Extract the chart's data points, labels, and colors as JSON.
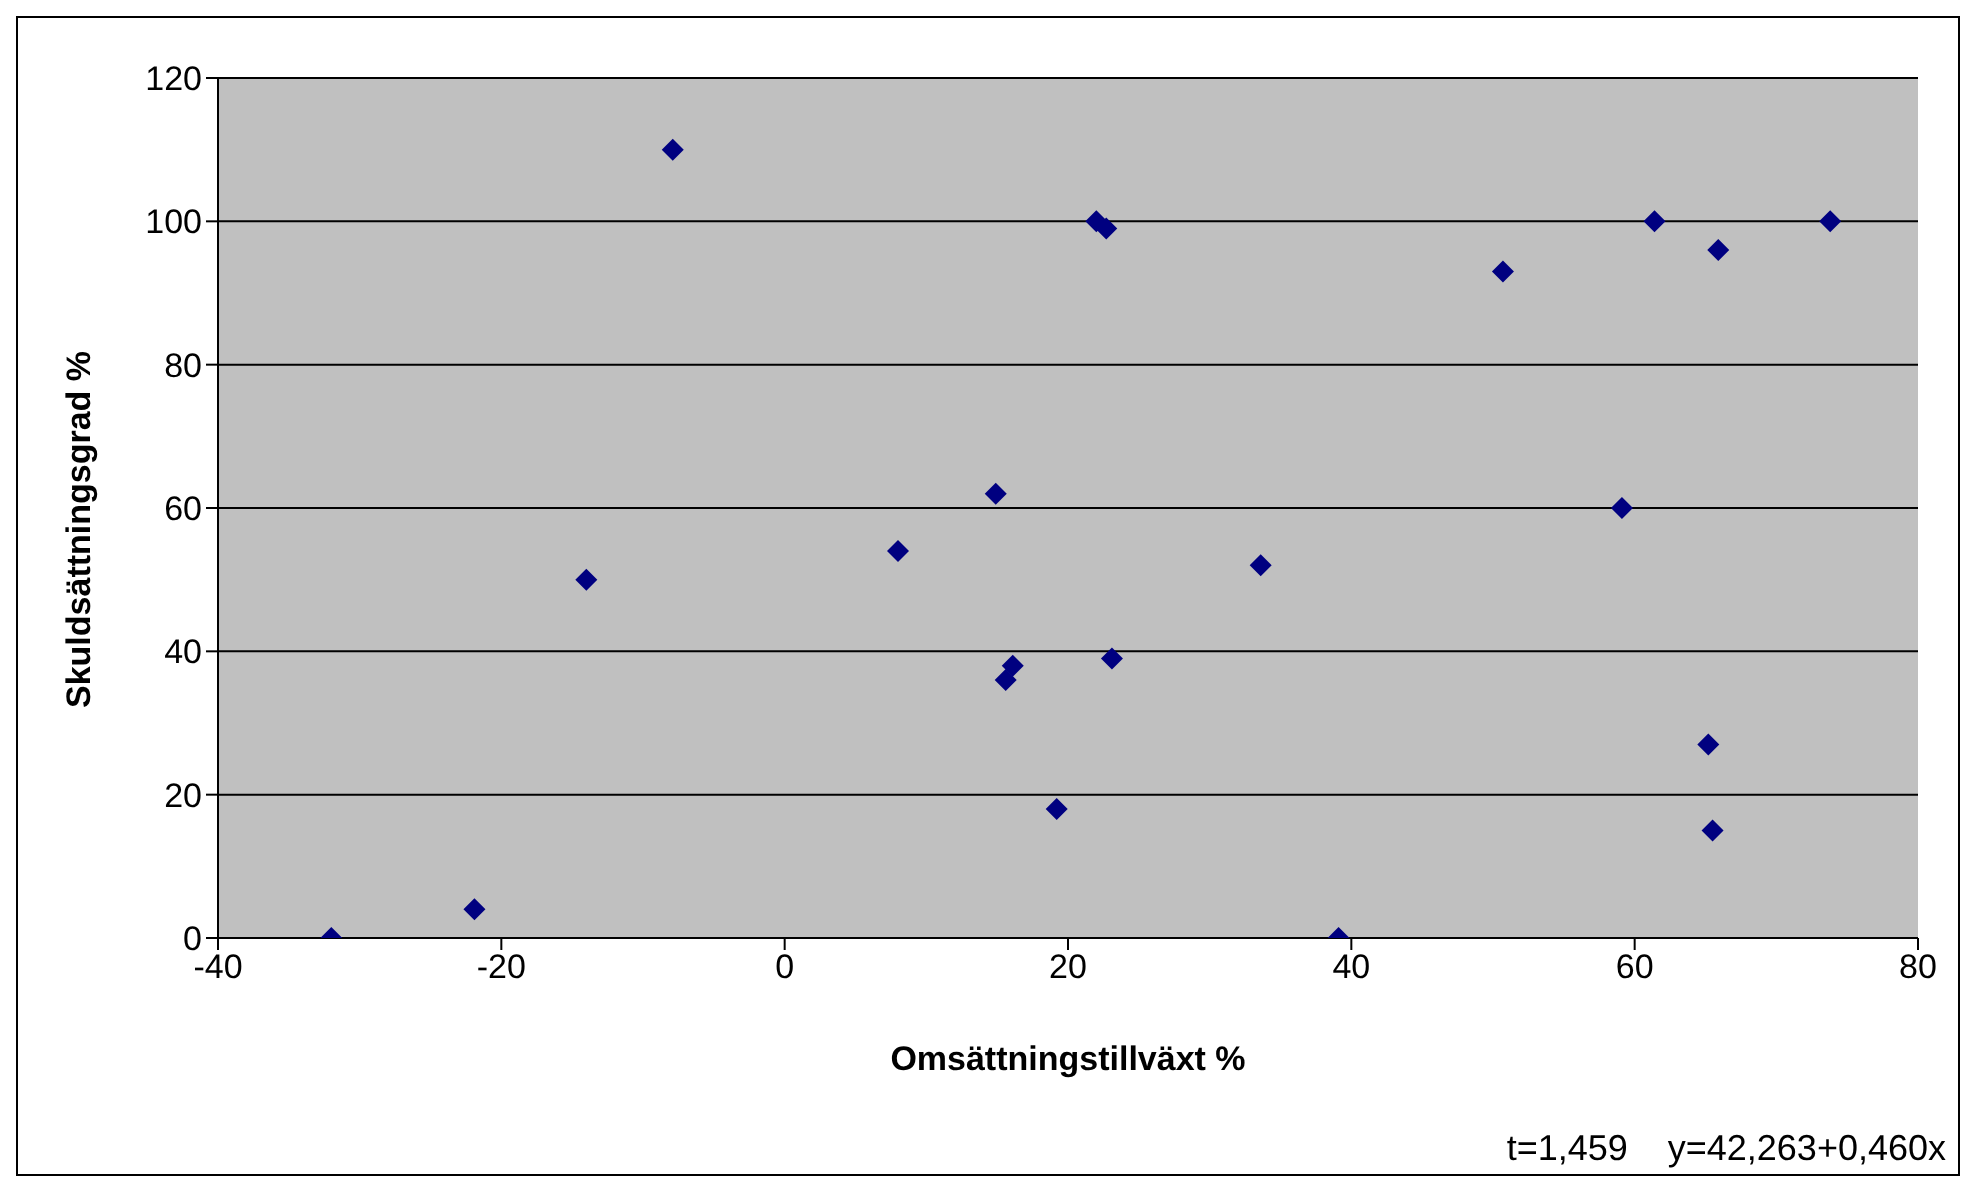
{
  "chart_data": {
    "type": "scatter",
    "xlabel": "Omsättningstillväxt %",
    "ylabel": "Skuldsättningsgrad %",
    "x": [
      -32.0,
      -21.9,
      -14.0,
      -7.9,
      8.0,
      14.9,
      16.1,
      15.6,
      19.2,
      22.0,
      22.7,
      50.7,
      61.4,
      65.9,
      73.8,
      59.1,
      33.6,
      23.1,
      65.2,
      65.5,
      39.1
    ],
    "series": [
      {
        "color": "#000080",
        "values": [
          0,
          4,
          50,
          110,
          54,
          62,
          38,
          36,
          18,
          100,
          99,
          93,
          100,
          96,
          100,
          60,
          52,
          39,
          27,
          15,
          0
        ]
      }
    ],
    "xlim": [
      -40,
      80
    ],
    "xticks": [
      -40,
      -20,
      0,
      20,
      40,
      60,
      80
    ],
    "ylim": [
      0,
      120
    ],
    "yticks": [
      0,
      20,
      40,
      60,
      80,
      100,
      120
    ],
    "grid": "y",
    "marker": "diamond",
    "legend": false,
    "annotations": [
      "t=1,459    y=42,263+0,460x"
    ]
  }
}
